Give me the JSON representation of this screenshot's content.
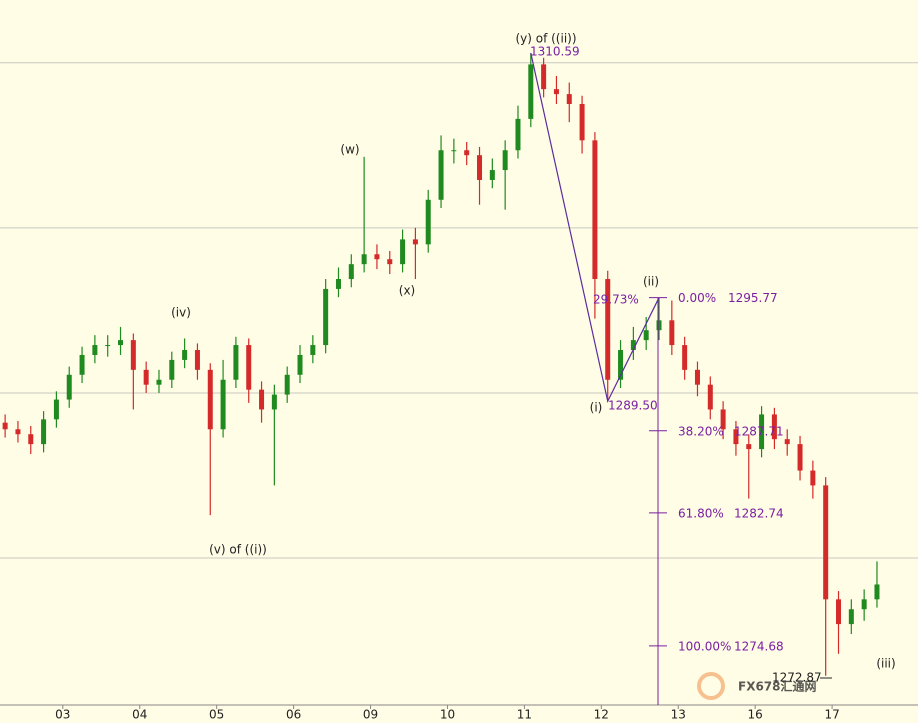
{
  "chart_data": {
    "type": "candlestick",
    "xlim": [
      -0.4,
      71.2
    ],
    "ylim": [
      1271.1,
      1313.8
    ],
    "xticks": [
      {
        "value": 4.5,
        "label": "03"
      },
      {
        "value": 10.5,
        "label": "04"
      },
      {
        "value": 16.5,
        "label": "05"
      },
      {
        "value": 22.5,
        "label": "06"
      },
      {
        "value": 28.5,
        "label": "09"
      },
      {
        "value": 34.5,
        "label": "10"
      },
      {
        "value": 40.5,
        "label": "11"
      },
      {
        "value": 46.5,
        "label": "12"
      },
      {
        "value": 52.5,
        "label": "13"
      },
      {
        "value": 58.5,
        "label": "16"
      },
      {
        "value": 64.5,
        "label": "17"
      }
    ],
    "grid_levels": [
      1280,
      1290,
      1300,
      1310
    ],
    "up_color": "#1f8a1f",
    "down_color": "#d42a2a",
    "open": [
      1288.2,
      1287.8,
      1287.5,
      1286.9,
      1288.4,
      1289.6,
      1291.1,
      1292.3,
      1292.9,
      1292.9,
      1293.2,
      1291.4,
      1290.5,
      1290.8,
      1292.0,
      1292.6,
      1291.4,
      1287.8,
      1290.8,
      1292.9,
      1290.2,
      1289.0,
      1289.9,
      1291.1,
      1292.3,
      1292.9,
      1296.3,
      1296.9,
      1297.8,
      1298.4,
      1298.1,
      1297.8,
      1299.3,
      1299.0,
      1301.7,
      1304.7,
      1304.7,
      1304.4,
      1302.9,
      1303.5,
      1304.7,
      1306.6,
      1309.9,
      1308.4,
      1308.1,
      1307.5,
      1305.3,
      1296.9,
      1290.8,
      1292.6,
      1293.2,
      1293.8,
      1294.4,
      1292.9,
      1291.4,
      1290.5,
      1289.0,
      1287.8,
      1286.9,
      1286.6,
      1288.7,
      1287.2,
      1286.9,
      1285.3,
      1284.4,
      1277.5,
      1276.0,
      1276.9,
      1277.5
    ],
    "high": [
      1288.7,
      1288.3,
      1288.0,
      1288.9,
      1290.1,
      1291.6,
      1292.8,
      1293.5,
      1293.5,
      1294.0,
      1293.6,
      1291.9,
      1291.4,
      1292.5,
      1293.3,
      1293.0,
      1291.8,
      1292.0,
      1293.4,
      1293.3,
      1290.7,
      1290.5,
      1291.6,
      1292.9,
      1293.5,
      1296.9,
      1297.6,
      1298.4,
      1304.3,
      1299.0,
      1298.6,
      1299.9,
      1300.0,
      1302.3,
      1305.6,
      1305.4,
      1305.2,
      1304.9,
      1304.2,
      1305.3,
      1307.4,
      1310.59,
      1310.3,
      1309.2,
      1308.8,
      1308.0,
      1305.8,
      1297.4,
      1293.2,
      1294.0,
      1294.6,
      1295.77,
      1295.6,
      1293.4,
      1291.9,
      1291.0,
      1289.5,
      1288.3,
      1287.5,
      1289.2,
      1289.1,
      1287.8,
      1287.4,
      1285.9,
      1284.9,
      1278.0,
      1277.5,
      1278.1,
      1279.8
    ],
    "low": [
      1287.3,
      1287.0,
      1286.3,
      1286.4,
      1287.9,
      1289.1,
      1290.6,
      1291.8,
      1292.2,
      1292.3,
      1289.0,
      1290.0,
      1290.0,
      1290.3,
      1291.5,
      1290.8,
      1282.6,
      1287.3,
      1290.3,
      1289.4,
      1288.2,
      1284.4,
      1289.4,
      1290.6,
      1291.8,
      1292.4,
      1295.8,
      1296.4,
      1297.3,
      1297.5,
      1297.2,
      1297.3,
      1296.9,
      1298.5,
      1301.2,
      1303.9,
      1303.8,
      1301.4,
      1302.4,
      1301.1,
      1304.2,
      1306.1,
      1307.9,
      1307.5,
      1306.4,
      1304.5,
      1294.5,
      1289.5,
      1290.3,
      1292.0,
      1292.6,
      1293.2,
      1292.3,
      1290.8,
      1289.8,
      1288.4,
      1287.2,
      1286.2,
      1283.6,
      1286.1,
      1286.6,
      1286.2,
      1284.7,
      1283.6,
      1272.87,
      1274.2,
      1275.4,
      1276.2,
      1277.0
    ],
    "close": [
      1287.8,
      1287.5,
      1286.9,
      1288.4,
      1289.6,
      1291.1,
      1292.3,
      1292.9,
      1292.9,
      1293.2,
      1291.4,
      1290.5,
      1290.8,
      1292.0,
      1292.6,
      1291.4,
      1287.8,
      1290.8,
      1292.9,
      1290.2,
      1289.0,
      1289.9,
      1291.1,
      1292.3,
      1292.9,
      1296.3,
      1296.9,
      1297.8,
      1298.4,
      1298.1,
      1297.8,
      1299.3,
      1299.0,
      1301.7,
      1304.7,
      1304.7,
      1304.4,
      1302.9,
      1303.5,
      1304.7,
      1306.6,
      1309.9,
      1308.4,
      1308.1,
      1307.5,
      1305.3,
      1296.9,
      1290.8,
      1292.6,
      1293.2,
      1293.8,
      1294.4,
      1292.9,
      1291.4,
      1290.5,
      1289.0,
      1287.8,
      1286.9,
      1286.6,
      1288.7,
      1287.2,
      1286.9,
      1285.3,
      1284.4,
      1277.5,
      1276.0,
      1276.9,
      1277.5,
      1278.4
    ],
    "annotations": [
      {
        "text": "(iv)"
      },
      {
        "text": "(v) of ((i))"
      },
      {
        "text": "(w)"
      },
      {
        "text": "(x)"
      },
      {
        "text": "(y) of ((ii))",
        "price": 1310.59
      },
      {
        "text": "(i)",
        "price": {
          "value": 1289.5,
          "label": "1289.50"
        }
      },
      {
        "text": "(ii)"
      },
      {
        "text": "(iii)"
      },
      {
        "price": 1272.87
      }
    ],
    "retracement": {
      "value": 29.73,
      "label": "29.73%"
    },
    "fibonacci": [
      {
        "pct": {
          "value": 0,
          "label": "0.00%"
        },
        "price": 1295.77
      },
      {
        "pct": {
          "value": 38.2,
          "label": "38.20%"
        },
        "price": 1287.71
      },
      {
        "pct": {
          "value": 61.8,
          "label": "61.80%"
        },
        "price": 1282.74
      },
      {
        "pct": {
          "value": 100,
          "label": "100.00%"
        },
        "price": 1274.68
      }
    ],
    "watermark": "FX678汇通网"
  }
}
